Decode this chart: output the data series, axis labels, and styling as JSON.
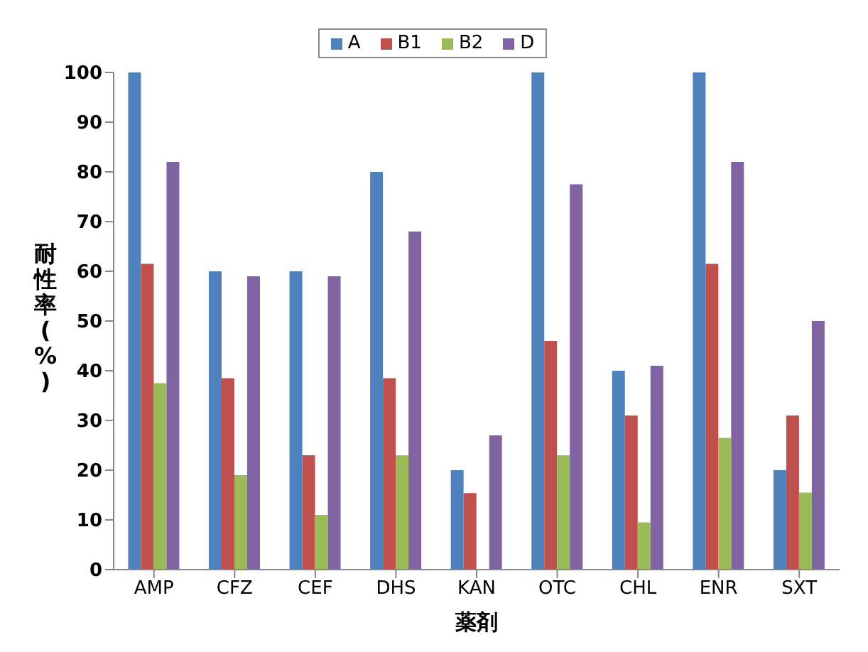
{
  "chart_data": {
    "type": "bar",
    "xlabel": "薬剤",
    "ylabel": "耐性率(%)",
    "categories": [
      "AMP",
      "CFZ",
      "CEF",
      "DHS",
      "KAN",
      "OTC",
      "CHL",
      "ENR",
      "SXT"
    ],
    "series": [
      {
        "name": "A",
        "color": "#4f81bd",
        "values": [
          100,
          60,
          60,
          80,
          20,
          100,
          40,
          100,
          20
        ]
      },
      {
        "name": "B1",
        "color": "#c0504d",
        "values": [
          61.5,
          38.5,
          23,
          38.5,
          15.4,
          46,
          31,
          61.5,
          31
        ]
      },
      {
        "name": "B2",
        "color": "#9bbb59",
        "values": [
          37.5,
          19,
          11,
          23,
          0,
          23,
          9.5,
          26.5,
          15.5
        ]
      },
      {
        "name": "D",
        "color": "#8064a2",
        "values": [
          82,
          59,
          59,
          68,
          27,
          77.5,
          41,
          82,
          50
        ]
      }
    ],
    "ylim": [
      0,
      100
    ],
    "yticks": [
      0,
      10,
      20,
      30,
      40,
      50,
      60,
      70,
      80,
      90,
      100
    ],
    "grid": false,
    "legend": "top"
  }
}
